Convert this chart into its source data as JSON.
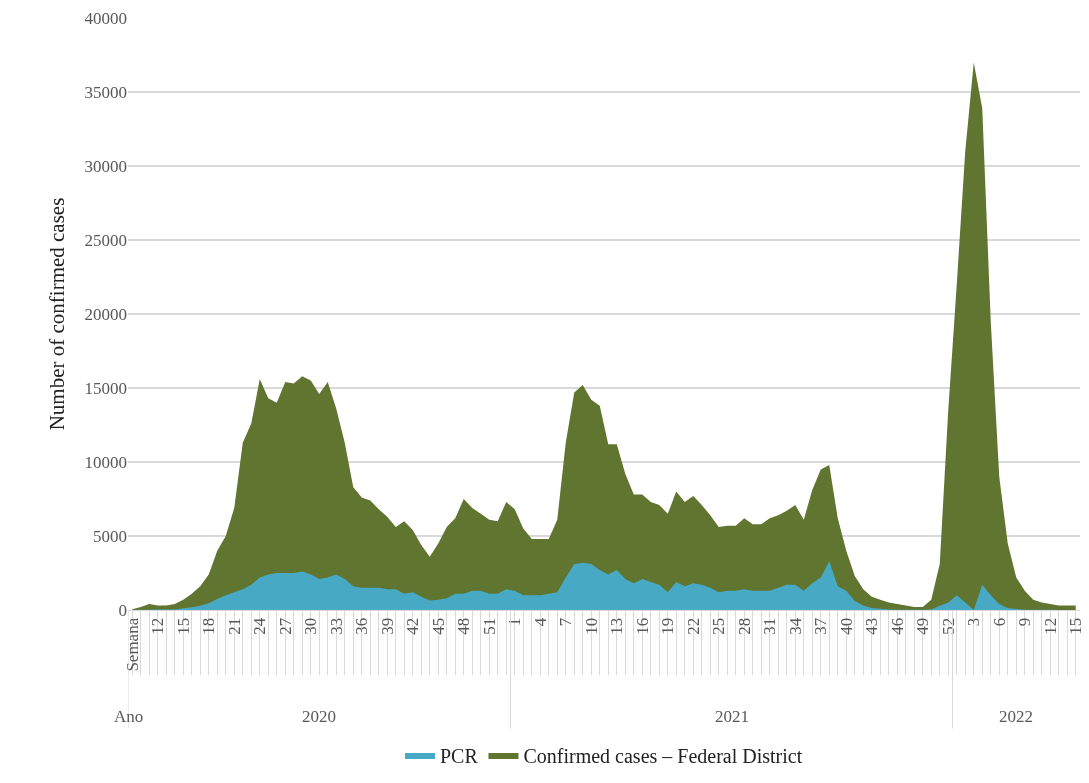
{
  "chart_data": {
    "type": "area",
    "ylabel": "Number of confirmed cases",
    "categories": [
      "Semana",
      null,
      null,
      "12",
      null,
      null,
      "15",
      null,
      null,
      "18",
      null,
      null,
      "21",
      null,
      null,
      "24",
      null,
      null,
      "27",
      null,
      null,
      "30",
      null,
      null,
      "33",
      null,
      null,
      "36",
      null,
      null,
      "39",
      null,
      null,
      "42",
      null,
      null,
      "45",
      null,
      null,
      "48",
      null,
      null,
      "51",
      null,
      null,
      "1",
      null,
      null,
      "4",
      null,
      null,
      "7",
      null,
      null,
      "10",
      null,
      null,
      "13",
      null,
      null,
      "16",
      null,
      null,
      "19",
      null,
      null,
      "22",
      null,
      null,
      "25",
      null,
      null,
      "28",
      null,
      null,
      "31",
      null,
      null,
      "34",
      null,
      null,
      "37",
      null,
      null,
      "40",
      null,
      null,
      "43",
      null,
      null,
      "46",
      null,
      null,
      "49",
      null,
      null,
      "52",
      null,
      null,
      "3",
      null,
      null,
      "6",
      null,
      null,
      "9",
      null,
      null,
      "12",
      null,
      null,
      "15"
    ],
    "series": [
      {
        "name": "Confirmed cases – Federal District",
        "color": "#5f7530",
        "values": [
          50,
          200,
          400,
          300,
          300,
          400,
          700,
          1100,
          1600,
          2400,
          4000,
          5000,
          6900,
          11300,
          12600,
          15600,
          14300,
          14000,
          15400,
          15300,
          15800,
          15500,
          14600,
          15400,
          13600,
          11300,
          8300,
          7600,
          7400,
          6800,
          6300,
          5600,
          6000,
          5400,
          4400,
          3600,
          4500,
          5600,
          6200,
          7500,
          6900,
          6500,
          6100,
          6000,
          7300,
          6800,
          5500,
          4800,
          4800,
          4800,
          6100,
          11300,
          14700,
          15200,
          14200,
          13800,
          11200,
          11200,
          9200,
          7800,
          7800,
          7300,
          7100,
          6500,
          8000,
          7300,
          7700,
          7100,
          6400,
          5600,
          5700,
          5700,
          6200,
          5800,
          5800,
          6200,
          6400,
          6700,
          7100,
          6100,
          8100,
          9500,
          9800,
          6200,
          4000,
          2300,
          1400,
          900,
          700,
          500,
          400,
          300,
          200,
          200,
          700,
          3100,
          13500,
          22000,
          31000,
          37000,
          33900,
          19500,
          9000,
          4500,
          2200,
          1300,
          700,
          500,
          400,
          300,
          300,
          300
        ]
      },
      {
        "name": "PCR",
        "color": "#48a9c5",
        "values": [
          0,
          10,
          20,
          30,
          30,
          40,
          110,
          180,
          290,
          450,
          740,
          1000,
          1200,
          1400,
          1700,
          2200,
          2400,
          2500,
          2500,
          2500,
          2600,
          2400,
          2100,
          2200,
          2400,
          2100,
          1600,
          1500,
          1500,
          1500,
          1400,
          1400,
          1100,
          1200,
          900,
          650,
          700,
          800,
          1100,
          1100,
          1300,
          1300,
          1100,
          1100,
          1400,
          1300,
          1000,
          1000,
          1000,
          1100,
          1200,
          2200,
          3100,
          3200,
          3100,
          2700,
          2400,
          2700,
          2100,
          1800,
          2100,
          1900,
          1700,
          1200,
          1900,
          1600,
          1800,
          1700,
          1500,
          1200,
          1300,
          1300,
          1400,
          1300,
          1300,
          1300,
          1500,
          1700,
          1700,
          1300,
          1800,
          2200,
          3300,
          1600,
          1300,
          600,
          300,
          130,
          90,
          40,
          20,
          20,
          20,
          20,
          40,
          290,
          500,
          1000,
          500,
          0,
          1700,
          1000,
          400,
          130,
          70,
          20,
          20,
          10,
          10,
          0,
          0,
          0
        ]
      }
    ],
    "ylim": [
      0,
      40000
    ],
    "yticks": [
      0,
      5000,
      10000,
      15000,
      20000,
      25000,
      30000,
      35000,
      40000
    ],
    "grid": "y",
    "legend": "bottom",
    "annotations": [
      "Ano",
      "2020",
      "2021",
      "2022"
    ]
  }
}
